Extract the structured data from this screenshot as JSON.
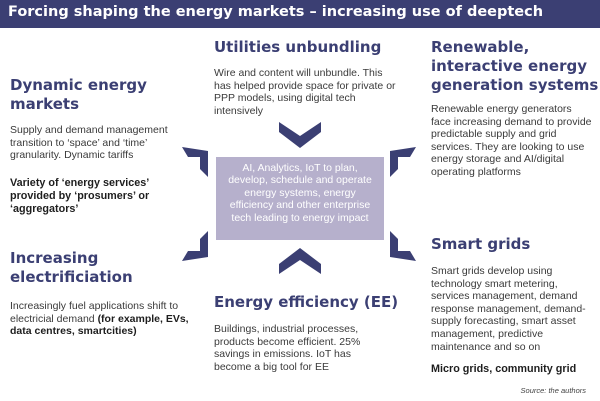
{
  "title": "Forcing shaping the energy markets – increasing use of deeptech",
  "colors": {
    "brand": "#3b3f73",
    "center_box": "#b6b0cc"
  },
  "center": {
    "text": "AI, Analytics, IoT to plan, develop, schedule and operate energy systems, energy efficiency and other enterprise tech leading to energy impact"
  },
  "blocks": {
    "utilities": {
      "title": "Utilities unbundling",
      "body": "Wire and content will unbundle. This has helped provide space for private or PPP models, using digital tech intensively"
    },
    "renewable": {
      "title_1": "Renewable,",
      "title_2": "interactive energy",
      "title_3": "generation systems",
      "body": "Renewable energy generators face increasing demand to provide predictable supply and grid services. They are looking to use energy storage and AI/digital operating platforms"
    },
    "dynamic": {
      "title_1": "Dynamic energy",
      "title_2": "markets",
      "body": "Supply and demand management transition to ‘space’ and ‘time’ granularity. Dynamic tariffs",
      "bold": "Variety of ‘energy services’ provided by ‘prosumers’ or ‘aggregators’"
    },
    "electrification": {
      "title_1": "Increasing",
      "title_2": "electrificiation",
      "body": "Increasingly fuel applications shift to electricial demand",
      "bold": "(for example, EVs, data centres, smartcities)"
    },
    "efficiency": {
      "title": "Energy efficiency (EE)",
      "body": "Buildings, industrial processes, products become efficient. 25% savings in emissions. IoT has become a big tool for EE"
    },
    "smartgrids": {
      "title": "Smart grids",
      "body": "Smart grids develop using technology smart metering, services management, demand response management, demand-supply forecasting, smart asset management, predictive maintenance and so on",
      "bold": "Micro grids, community grid"
    }
  },
  "source": "Source: the authors"
}
